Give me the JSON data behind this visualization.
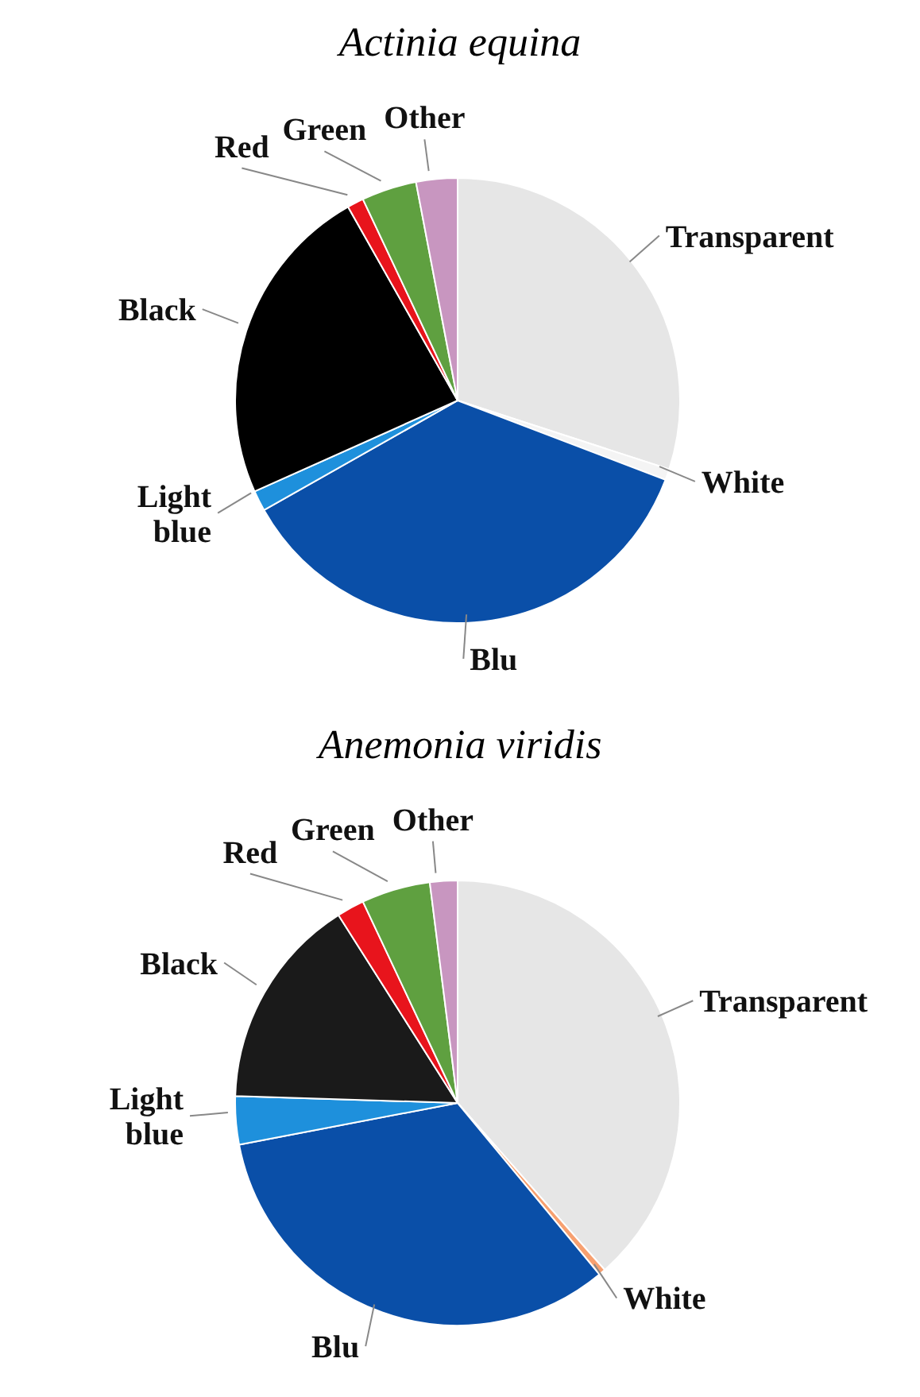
{
  "chart_data": [
    {
      "type": "pie",
      "title": "Actinia equina",
      "categories": [
        "Transparent",
        "White",
        "Blu",
        "Light blue",
        "Black",
        "Red",
        "Green",
        "Other"
      ],
      "values": [
        30,
        0.8,
        36,
        1.5,
        23.5,
        1.2,
        4,
        3
      ],
      "colors": [
        "#e6e6e6",
        "#f4f4f4",
        "#0a4fa8",
        "#1e90dc",
        "#000000",
        "#e8141c",
        "#5fa040",
        "#c896c0"
      ]
    },
    {
      "type": "pie",
      "title": "Anemonia viridis",
      "categories": [
        "Transparent",
        "White",
        "Blu",
        "Light blue",
        "Black",
        "Red",
        "Green",
        "Other"
      ],
      "values": [
        38.5,
        0.5,
        33,
        3.5,
        15.5,
        2,
        5,
        2
      ],
      "colors": [
        "#e6e6e6",
        "#f7a070",
        "#0a4fa8",
        "#1e90dc",
        "#1a1a1a",
        "#e8141c",
        "#5fa040",
        "#c896c0"
      ]
    }
  ]
}
